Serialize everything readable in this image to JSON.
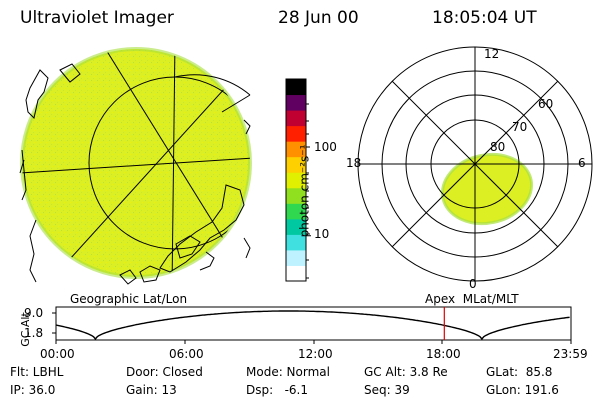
{
  "header": {
    "instrument": "Ultraviolet Imager",
    "date": "28 Jun 00",
    "time": "18:05:04 UT"
  },
  "colorbar": {
    "units_label": "photon cm⁻²s⁻¹",
    "tick_100": "100",
    "tick_10": "10",
    "colors": [
      "#ffffff",
      "#bff2ff",
      "#40e0e0",
      "#00c8a0",
      "#30d850",
      "#90e020",
      "#e0f000",
      "#ffd000",
      "#ff9000",
      "#ff2000",
      "#c00030",
      "#600060",
      "#000000"
    ]
  },
  "left_panel": {
    "caption": "Geographic Lat/Lon",
    "image_color": "#d8ee20"
  },
  "right_panel": {
    "caption": "Apex  MLat/MLT",
    "label_12": "12",
    "label_18": "18",
    "label_6": "6",
    "label_0": "0",
    "label_60": "60",
    "label_70": "70",
    "label_80": "80",
    "image_color": "#d8ee20"
  },
  "altitude_plot": {
    "ylabel": "GC Alt",
    "ytick_top": "9.0",
    "ytick_bottom": "1.8",
    "xticks": [
      "00:00",
      "06:00",
      "12:00",
      "18:00",
      "23:59"
    ],
    "current_time_marker": "18:05",
    "marker_color": "#e00000"
  },
  "status": {
    "flt": "Flt: LBHL",
    "ip": "IP: 36.0",
    "door": "Door: Closed",
    "gain": "Gain: 13",
    "mode": "Mode: Normal",
    "dsp": "Dsp:   -6.1",
    "gc_alt": "GC Alt: 3.8 Re",
    "seq": "Seq: 39",
    "glat": "GLat:  85.8",
    "glon": "GLon: 191.6"
  }
}
